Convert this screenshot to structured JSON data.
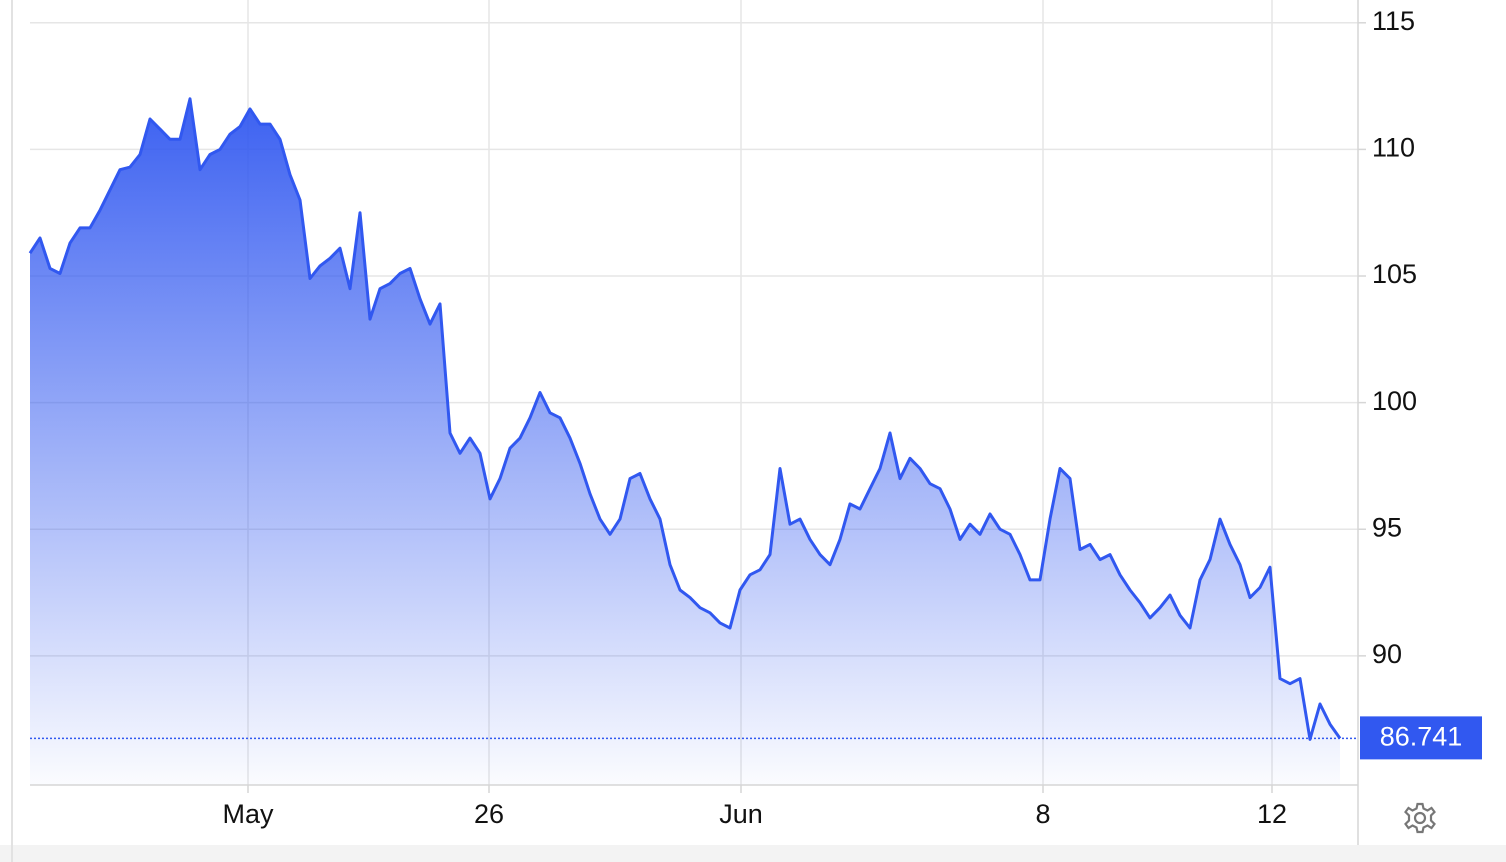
{
  "chart_data": {
    "type": "area",
    "values": [
      105.9,
      106.5,
      105.3,
      105.1,
      106.3,
      106.9,
      106.9,
      107.6,
      108.4,
      109.2,
      109.3,
      109.8,
      111.2,
      110.8,
      110.4,
      110.4,
      112.0,
      109.2,
      109.8,
      110.0,
      110.6,
      110.9,
      111.6,
      111.0,
      111.0,
      110.4,
      109.0,
      108.0,
      104.9,
      105.4,
      105.7,
      106.1,
      104.5,
      107.5,
      103.3,
      104.5,
      104.7,
      105.1,
      105.3,
      104.1,
      103.1,
      103.9,
      98.8,
      98.0,
      98.6,
      98.0,
      96.2,
      97.0,
      98.2,
      98.6,
      99.4,
      100.4,
      99.6,
      99.4,
      98.6,
      97.6,
      96.4,
      95.4,
      94.8,
      95.4,
      97.0,
      97.2,
      96.2,
      95.4,
      93.6,
      92.6,
      92.3,
      91.9,
      91.7,
      91.3,
      91.1,
      92.6,
      93.2,
      93.4,
      94.0,
      97.4,
      95.2,
      95.4,
      94.6,
      94.0,
      93.6,
      94.6,
      96.0,
      95.8,
      96.6,
      97.4,
      98.8,
      97.0,
      97.8,
      97.4,
      96.8,
      96.6,
      95.8,
      94.6,
      95.2,
      94.8,
      95.6,
      95.0,
      94.8,
      94.0,
      93.0,
      93.0,
      95.4,
      97.4,
      97.0,
      94.2,
      94.4,
      93.8,
      94.0,
      93.2,
      92.6,
      92.1,
      91.5,
      91.9,
      92.4,
      91.6,
      91.1,
      93.0,
      93.8,
      95.4,
      94.4,
      93.6,
      92.3,
      92.7,
      93.5,
      89.1,
      88.9,
      89.1,
      86.7,
      88.1,
      87.3,
      86.741
    ],
    "color": "#3158f0",
    "xlim": [
      0,
      132.8
    ],
    "xticks": [
      {
        "value": 21.8,
        "label": "May"
      },
      {
        "value": 45.9,
        "label": "26"
      },
      {
        "value": 71.1,
        "label": "Jun"
      },
      {
        "value": 101.3,
        "label": "8"
      },
      {
        "value": 124.2,
        "label": "12"
      }
    ],
    "ylim": [
      84.9,
      115.9
    ],
    "yticks": [
      90,
      95,
      100,
      105,
      110,
      115
    ],
    "grid": true
  }
}
